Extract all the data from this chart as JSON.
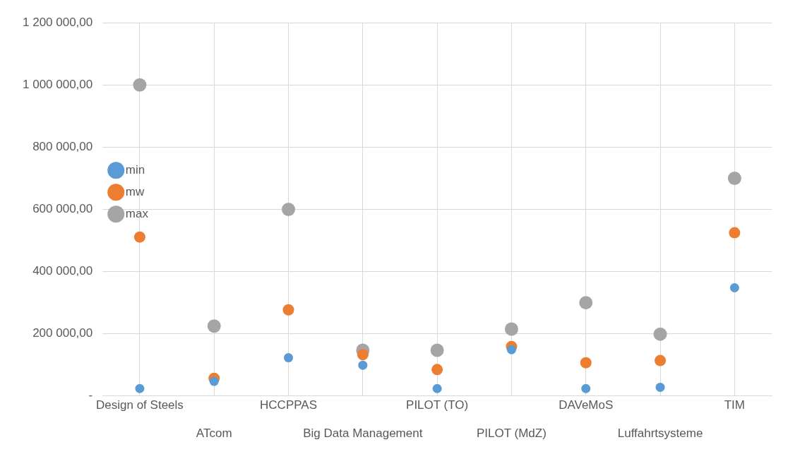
{
  "chart_data": {
    "type": "scatter",
    "categories": [
      "Design of Steels",
      "ATcom",
      "HCCPPAS",
      "Big Data Management",
      "PILOT (TO)",
      "PILOT (MdZ)",
      "DAVeMoS",
      "Luffahrtsysteme",
      "TIM"
    ],
    "series": [
      {
        "name": "min",
        "color": "#5b9bd5",
        "values": [
          24000,
          47000,
          123000,
          99000,
          24000,
          149000,
          24000,
          28000,
          348000
        ]
      },
      {
        "name": "mw",
        "color": "#ed7d31",
        "values": [
          511000,
          57000,
          277000,
          133000,
          85000,
          159000,
          107000,
          114000,
          525000
        ]
      },
      {
        "name": "max",
        "color": "#a5a5a5",
        "values": [
          1000000,
          225000,
          600000,
          147000,
          147000,
          215000,
          300000,
          199000,
          700000
        ]
      }
    ],
    "ylim": [
      0,
      1200000
    ],
    "yticks": [
      {
        "value": 0,
        "label": "-"
      },
      {
        "value": 200000,
        "label": "200 000,00"
      },
      {
        "value": 400000,
        "label": "400 000,00"
      },
      {
        "value": 600000,
        "label": "600 000,00"
      },
      {
        "value": 800000,
        "label": "800 000,00"
      },
      {
        "value": 1000000,
        "label": "1 000 000,00"
      },
      {
        "value": 1200000,
        "label": "1 200 000,00"
      }
    ],
    "grid": true,
    "legend": "top",
    "marker": "circle"
  }
}
